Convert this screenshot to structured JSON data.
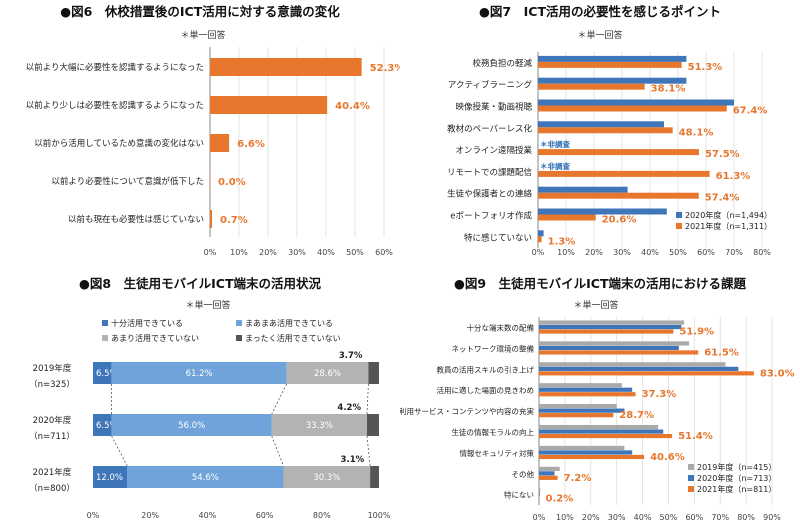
{
  "colors": {
    "orange": "#e8772e",
    "blue": "#3f76b9",
    "gray": "#a9a9a9",
    "dark": "#4a4a4a",
    "lightblue": "#6fa3d9",
    "midgray": "#b3b3b3",
    "darkgray": "#555555"
  },
  "chart_data": [
    {
      "id": "fig6",
      "type": "bar",
      "orientation": "horizontal",
      "title": "●図6　休校措置後のICT活用に対する意識の変化",
      "note": "＊単一回答",
      "categories": [
        "以前より大幅に必要性を認識するようになった",
        "以前より少しは必要性を認識するようになった",
        "以前から活用しているため意識の変化はない",
        "以前より必要性について意識が低下した",
        "以前も現在も必要性は感じていない"
      ],
      "values": [
        52.3,
        40.4,
        6.6,
        0.0,
        0.7
      ],
      "value_labels": [
        "52.3%",
        "40.4%",
        "6.6%",
        "0.0%",
        "0.7%"
      ],
      "xlim": [
        0,
        60
      ],
      "ticks": [
        "0%",
        "10%",
        "20%",
        "30%",
        "40%",
        "50%",
        "60%"
      ]
    },
    {
      "id": "fig7",
      "type": "bar",
      "orientation": "horizontal",
      "title": "●図7　ICT活用の必要性を感じるポイント",
      "note": "＊単一回答",
      "categories": [
        "校務負担の軽減",
        "アクティブラーニング",
        "映像授業・動画視聴",
        "教材のペーパーレス化",
        "オンライン遠隔授業",
        "リモートでの課題配信",
        "生徒や保護者との連絡",
        "eポートフォリオ作成",
        "特に感じていない"
      ],
      "series": [
        {
          "name": "2020年度（n=1,494）",
          "values": [
            53,
            53,
            70,
            45,
            null,
            null,
            32,
            46,
            2
          ]
        },
        {
          "name": "2021年度（n=1,311）",
          "values": [
            51.3,
            38.1,
            67.4,
            48.1,
            57.5,
            61.3,
            57.4,
            20.6,
            1.3
          ]
        }
      ],
      "value_labels": [
        "51.3%",
        "38.1%",
        "67.4%",
        "48.1%",
        "57.5%",
        "61.3%",
        "57.4%",
        "20.6%",
        "1.3%"
      ],
      "badges": [
        "",
        "",
        "",
        "",
        "＊非調査",
        "＊非調査",
        "",
        "",
        ""
      ],
      "xlim": [
        0,
        80
      ],
      "ticks": [
        "0%",
        "10%",
        "20%",
        "30%",
        "40%",
        "50%",
        "60%",
        "70%",
        "80%"
      ]
    },
    {
      "id": "fig8",
      "type": "bar",
      "orientation": "horizontal-stacked",
      "title": "●図8　生徒用モバイルICT端末の活用状況",
      "note": "＊単一回答",
      "legend": [
        "十分活用できている",
        "まあまあ活用できている",
        "あまり活用できていない",
        "まったく活用できていない"
      ],
      "rows": [
        {
          "label1": "2019年度",
          "label2": "（n=325）",
          "values": [
            6.5,
            61.2,
            28.6,
            3.7
          ],
          "labels": [
            "6.5%",
            "61.2%",
            "28.6%",
            "3.7%"
          ]
        },
        {
          "label1": "2020年度",
          "label2": "（n=711）",
          "values": [
            6.5,
            56.0,
            33.3,
            4.2
          ],
          "labels": [
            "6.5%",
            "56.0%",
            "33.3%",
            "4.2%"
          ]
        },
        {
          "label1": "2021年度",
          "label2": "（n=800）",
          "values": [
            12.0,
            54.6,
            30.3,
            3.1
          ],
          "labels": [
            "12.0%",
            "54.6%",
            "30.3%",
            "3.1%"
          ]
        }
      ],
      "xlim": [
        0,
        100
      ],
      "ticks": [
        "0%",
        "20%",
        "40%",
        "60%",
        "80%",
        "100%"
      ]
    },
    {
      "id": "fig9",
      "type": "bar",
      "orientation": "horizontal",
      "title": "●図9　生徒用モバイルICT端末の活用における課題",
      "note": "＊単一回答",
      "categories": [
        "十分な端末数の配備",
        "ネットワーク環境の整備",
        "教員の活用スキルの引き上げ",
        "活用に適した場面の見きわめ",
        "利用サービス・コンテンツや内容の充実",
        "生徒の情報モラルの向上",
        "情報セキュリティ対策",
        "その他",
        "特にない"
      ],
      "series": [
        {
          "name": "2019年度（n=415）",
          "values": [
            56,
            58,
            72,
            32,
            30,
            46,
            33,
            8,
            0.5
          ]
        },
        {
          "name": "2020年度（n=713）",
          "values": [
            55,
            54,
            77,
            36,
            33,
            48,
            36,
            6,
            0.3
          ]
        },
        {
          "name": "2021年度（n=811）",
          "values": [
            51.9,
            61.5,
            83.0,
            37.3,
            28.7,
            51.4,
            40.6,
            7.2,
            0.2
          ]
        }
      ],
      "value_labels": [
        "51.9%",
        "61.5%",
        "83.0%",
        "37.3%",
        "28.7%",
        "51.4%",
        "40.6%",
        "7.2%",
        "0.2%"
      ],
      "xlim": [
        0,
        90
      ],
      "ticks": [
        "0%",
        "10%",
        "20%",
        "30%",
        "40%",
        "50%",
        "60%",
        "70%",
        "80%",
        "90%"
      ]
    }
  ]
}
